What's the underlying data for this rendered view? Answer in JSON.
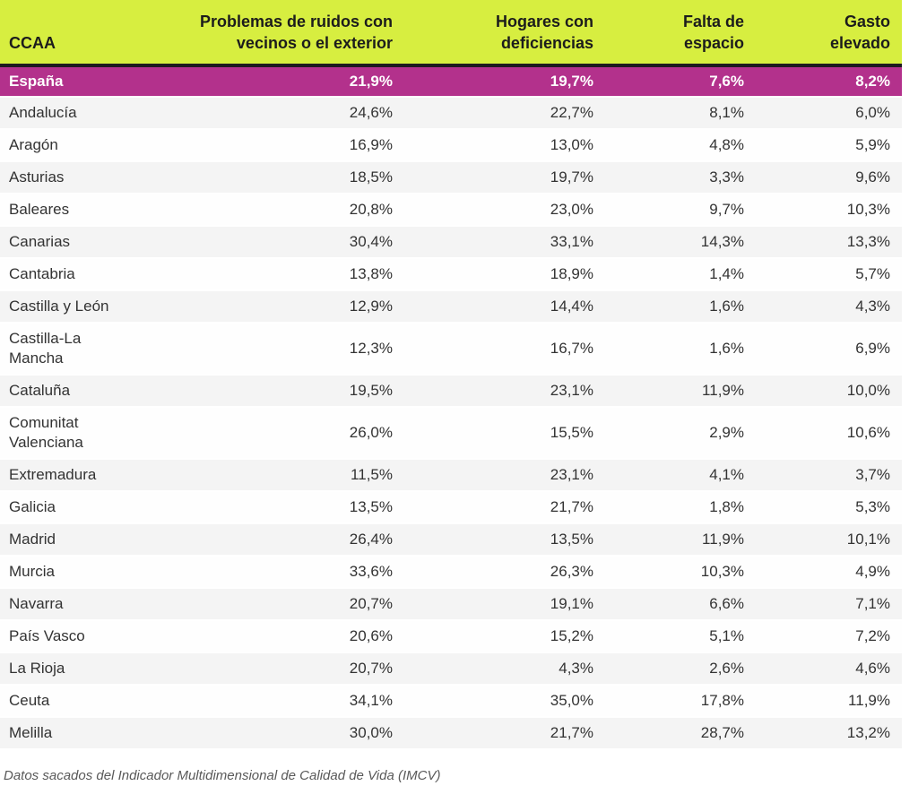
{
  "table": {
    "columns": [
      {
        "key": "ccaa",
        "label": "CCAA"
      },
      {
        "key": "ruidos",
        "label": "Problemas de ruidos con\nvecinos o el exterior"
      },
      {
        "key": "deficiencias",
        "label": "Hogares con\ndeficiencias"
      },
      {
        "key": "espacio",
        "label": "Falta de\nespacio"
      },
      {
        "key": "gasto",
        "label": "Gasto\nelevado"
      }
    ],
    "rows": [
      {
        "ccaa": "España",
        "highlight": true,
        "values": [
          "21,9%",
          "19,7%",
          "7,6%",
          "8,2%"
        ]
      },
      {
        "ccaa": "Andalucía",
        "values": [
          "24,6%",
          "22,7%",
          "8,1%",
          "6,0%"
        ]
      },
      {
        "ccaa": "Aragón",
        "values": [
          "16,9%",
          "13,0%",
          "4,8%",
          "5,9%"
        ]
      },
      {
        "ccaa": "Asturias",
        "values": [
          "18,5%",
          "19,7%",
          "3,3%",
          "9,6%"
        ]
      },
      {
        "ccaa": "Baleares",
        "values": [
          "20,8%",
          "23,0%",
          "9,7%",
          "10,3%"
        ]
      },
      {
        "ccaa": "Canarias",
        "values": [
          "30,4%",
          "33,1%",
          "14,3%",
          "13,3%"
        ]
      },
      {
        "ccaa": "Cantabria",
        "values": [
          "13,8%",
          "18,9%",
          "1,4%",
          "5,7%"
        ]
      },
      {
        "ccaa": "Castilla y León",
        "values": [
          "12,9%",
          "14,4%",
          "1,6%",
          "4,3%"
        ]
      },
      {
        "ccaa": "Castilla-La\nMancha",
        "values": [
          "12,3%",
          "16,7%",
          "1,6%",
          "6,9%"
        ]
      },
      {
        "ccaa": "Cataluña",
        "values": [
          "19,5%",
          "23,1%",
          "11,9%",
          "10,0%"
        ]
      },
      {
        "ccaa": "Comunitat\nValenciana",
        "values": [
          "26,0%",
          "15,5%",
          "2,9%",
          "10,6%"
        ]
      },
      {
        "ccaa": "Extremadura",
        "values": [
          "11,5%",
          "23,1%",
          "4,1%",
          "3,7%"
        ]
      },
      {
        "ccaa": "Galicia",
        "values": [
          "13,5%",
          "21,7%",
          "1,8%",
          "5,3%"
        ]
      },
      {
        "ccaa": "Madrid",
        "values": [
          "26,4%",
          "13,5%",
          "11,9%",
          "10,1%"
        ]
      },
      {
        "ccaa": "Murcia",
        "values": [
          "33,6%",
          "26,3%",
          "10,3%",
          "4,9%"
        ]
      },
      {
        "ccaa": "Navarra",
        "values": [
          "20,7%",
          "19,1%",
          "6,6%",
          "7,1%"
        ]
      },
      {
        "ccaa": "País Vasco",
        "values": [
          "20,6%",
          "15,2%",
          "5,1%",
          "7,2%"
        ]
      },
      {
        "ccaa": "La Rioja",
        "values": [
          "20,7%",
          "4,3%",
          "2,6%",
          "4,6%"
        ]
      },
      {
        "ccaa": "Ceuta",
        "values": [
          "34,1%",
          "35,0%",
          "17,8%",
          "11,9%"
        ]
      },
      {
        "ccaa": "Melilla",
        "values": [
          "30,0%",
          "21,7%",
          "28,7%",
          "13,2%"
        ]
      }
    ]
  },
  "footer": {
    "note": "Datos sacados del Indicador Multidimensional de Calidad de Vida (IMCV)"
  },
  "colors": {
    "header_bg": "#d7ee40",
    "highlight_row_bg": "#b3318c",
    "highlight_row_text": "#ffffff",
    "alt_row_bg": "#f4f4f4",
    "header_border": "#1d1a1f",
    "body_text": "#333333",
    "note_text": "#595959"
  },
  "chart_data": {
    "type": "table",
    "title": "",
    "categories": [
      "España",
      "Andalucía",
      "Aragón",
      "Asturias",
      "Baleares",
      "Canarias",
      "Cantabria",
      "Castilla y León",
      "Castilla-La Mancha",
      "Cataluña",
      "Comunitat Valenciana",
      "Extremadura",
      "Galicia",
      "Madrid",
      "Murcia",
      "Navarra",
      "País Vasco",
      "La Rioja",
      "Ceuta",
      "Melilla"
    ],
    "series": [
      {
        "name": "Problemas de ruidos con vecinos o el exterior",
        "unit": "%",
        "values": [
          21.9,
          24.6,
          16.9,
          18.5,
          20.8,
          30.4,
          13.8,
          12.9,
          12.3,
          19.5,
          26.0,
          11.5,
          13.5,
          26.4,
          33.6,
          20.7,
          20.6,
          20.7,
          34.1,
          30.0
        ]
      },
      {
        "name": "Hogares con deficiencias",
        "unit": "%",
        "values": [
          19.7,
          22.7,
          13.0,
          19.7,
          23.0,
          33.1,
          18.9,
          14.4,
          16.7,
          23.1,
          15.5,
          23.1,
          21.7,
          13.5,
          26.3,
          19.1,
          15.2,
          4.3,
          35.0,
          21.7
        ]
      },
      {
        "name": "Falta de espacio",
        "unit": "%",
        "values": [
          7.6,
          8.1,
          4.8,
          3.3,
          9.7,
          14.3,
          1.4,
          1.6,
          1.6,
          11.9,
          2.9,
          4.1,
          1.8,
          11.9,
          10.3,
          6.6,
          5.1,
          2.6,
          17.8,
          28.7
        ]
      },
      {
        "name": "Gasto elevado",
        "unit": "%",
        "values": [
          8.2,
          6.0,
          5.9,
          9.6,
          10.3,
          13.3,
          5.7,
          4.3,
          6.9,
          10.0,
          10.6,
          3.7,
          5.3,
          10.1,
          4.9,
          7.1,
          7.2,
          4.6,
          11.9,
          13.2
        ]
      }
    ],
    "source_note": "Datos sacados del Indicador Multidimensional de Calidad de Vida (IMCV)",
    "decimal_separator": ",",
    "highlight_row": "España"
  }
}
